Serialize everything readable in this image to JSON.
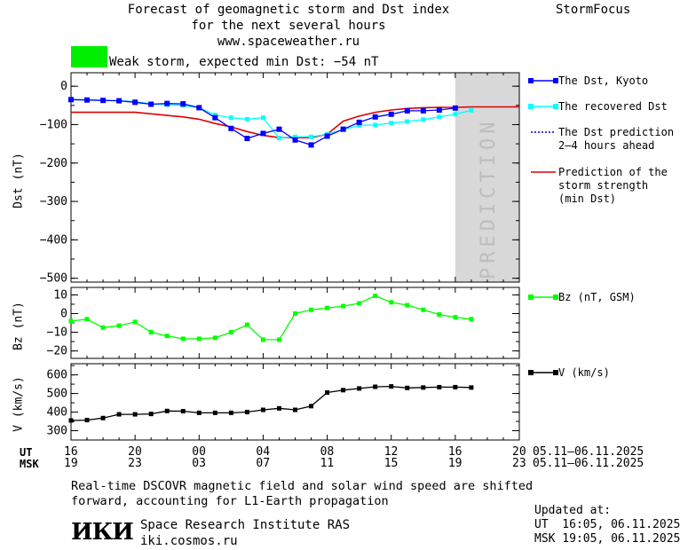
{
  "header": {
    "title_lines": [
      "Forecast of geomagnetic storm and Dst index",
      "for the next several hours",
      "www.spaceweather.ru"
    ],
    "brand": "StormFocus",
    "storm_text": "Weak storm, expected min Dst: −54 nT",
    "storm_color": "#00ee00"
  },
  "prediction_label": "PREDICTION",
  "colors": {
    "dst": "#0000ff",
    "recovered": "#00ffff",
    "prediction_line": "#0000cc",
    "strength": "#dd0000",
    "bz": "#00ff00",
    "v": "#000000",
    "prediction_band": "#d8d8d8"
  },
  "legend": {
    "dst": "The Dst, Kyoto",
    "recovered": "The recovered Dst",
    "prediction": [
      "The Dst prediction",
      "2–4 hours ahead"
    ],
    "strength": [
      "Prediction of the",
      "storm strength",
      "(min Dst)"
    ],
    "bz": "Bz (nT, GSM)",
    "v": "V (km/s)"
  },
  "time_axis": {
    "ut_label": "UT",
    "msk_label": "MSK",
    "ut_ticks": [
      "16",
      "20",
      "00",
      "04",
      "08",
      "12",
      "16",
      "20"
    ],
    "msk_ticks": [
      "19",
      "23",
      "03",
      "07",
      "11",
      "15",
      "19",
      "23"
    ],
    "ut_dates": "05.11–06.11.2025",
    "msk_dates": "05.11–06.11.2025"
  },
  "footer": {
    "note_lines": [
      "Real-time DSCOVR magnetic field and solar wind speed are shifted",
      "forward, accounting for L1-Earth propagation"
    ],
    "logo": "ИКИ",
    "institute": "Space Research Institute RAS",
    "site": "iki.cosmos.ru",
    "updated_label": "Updated at:",
    "updated_ut": "UT  16:05, 06.11.2025",
    "updated_msk": "MSK 19:05, 06.11.2025"
  },
  "chart_data": [
    {
      "type": "line",
      "ylabel": "Dst (nT)",
      "ylim": [
        -510,
        35
      ],
      "yticks": [
        0,
        -100,
        -200,
        -300,
        -400,
        -500
      ],
      "ytick_labels": [
        "0",
        "−100",
        "−200",
        "−300",
        "−400",
        "−500"
      ],
      "x_unit": "hours since 16 UT 05.11.2025",
      "xlim": [
        0,
        28
      ],
      "prediction_start": 24,
      "series": [
        {
          "name": "The Dst, Kyoto",
          "x": [
            0,
            1,
            2,
            3,
            4,
            5,
            6,
            7,
            8,
            9,
            10,
            11,
            12,
            13,
            14,
            15,
            16,
            17,
            18,
            19,
            20,
            21,
            22,
            23,
            24
          ],
          "y": [
            -35,
            -36,
            -37,
            -38,
            -42,
            -47,
            -45,
            -46,
            -56,
            -82,
            -110,
            -136,
            -123,
            -112,
            -140,
            -153,
            -130,
            -112,
            -94,
            -80,
            -73,
            -64,
            -64,
            -62,
            -57
          ]
        },
        {
          "name": "The recovered Dst",
          "x": [
            0,
            1,
            2,
            3,
            4,
            5,
            6,
            7,
            8,
            9,
            10,
            11,
            12,
            13,
            14,
            15,
            16,
            17,
            18,
            19,
            20,
            21,
            22,
            23,
            24,
            25
          ],
          "y": [
            -35,
            -36,
            -37,
            -38,
            -40,
            -46,
            -48,
            -50,
            -56,
            -75,
            -82,
            -86,
            -82,
            -135,
            -132,
            -132,
            -125,
            -113,
            -102,
            -101,
            -96,
            -92,
            -87,
            -80,
            -73,
            -63
          ]
        },
        {
          "name": "Prediction of the storm strength (min Dst)",
          "x": [
            0,
            4,
            5,
            6,
            7,
            8,
            9,
            10,
            11,
            12,
            13,
            14,
            15,
            16,
            17,
            18,
            19,
            20,
            21,
            22,
            23,
            24,
            25,
            26,
            27,
            28
          ],
          "y": [
            -68,
            -68,
            -72,
            -76,
            -80,
            -86,
            -97,
            -106,
            -118,
            -128,
            -134,
            -134,
            -134,
            -125,
            -91,
            -78,
            -68,
            -62,
            -58,
            -56,
            -55,
            -55,
            -54,
            -54,
            -54,
            -54
          ]
        }
      ]
    },
    {
      "type": "line",
      "ylabel": "Bz (nT)",
      "ylim": [
        -24,
        14
      ],
      "yticks": [
        10,
        0,
        -10,
        -20
      ],
      "ytick_labels": [
        "10",
        "0",
        "−10",
        "−20"
      ],
      "series": [
        {
          "name": "Bz (nT, GSM)",
          "x": [
            0,
            1,
            2,
            3,
            4,
            5,
            6,
            7,
            8,
            9,
            10,
            11,
            12,
            13,
            14,
            15,
            16,
            17,
            18,
            19,
            20,
            21,
            22,
            23,
            24,
            25
          ],
          "y": [
            -4,
            -3,
            -7.5,
            -6.5,
            -4.5,
            -10,
            -12,
            -13.5,
            -13.5,
            -13,
            -10,
            -6,
            -14,
            -14,
            0,
            2,
            3,
            4,
            5.5,
            9.5,
            6,
            4.5,
            2,
            -0.5,
            -2,
            -3
          ]
        }
      ]
    },
    {
      "type": "line",
      "ylabel": "V (km/s)",
      "ylim": [
        250,
        660
      ],
      "yticks": [
        600,
        500,
        400,
        300
      ],
      "ytick_labels": [
        "600",
        "500",
        "400",
        "300"
      ],
      "series": [
        {
          "name": "V (km/s)",
          "x": [
            0,
            1,
            2,
            3,
            4,
            5,
            6,
            7,
            8,
            9,
            10,
            11,
            12,
            13,
            14,
            15,
            16,
            17,
            18,
            19,
            20,
            21,
            22,
            23,
            24,
            25
          ],
          "y": [
            355,
            357,
            368,
            388,
            388,
            390,
            406,
            405,
            396,
            396,
            396,
            400,
            412,
            420,
            412,
            432,
            505,
            518,
            527,
            536,
            538,
            530,
            532,
            534,
            534,
            532
          ]
        }
      ]
    }
  ]
}
